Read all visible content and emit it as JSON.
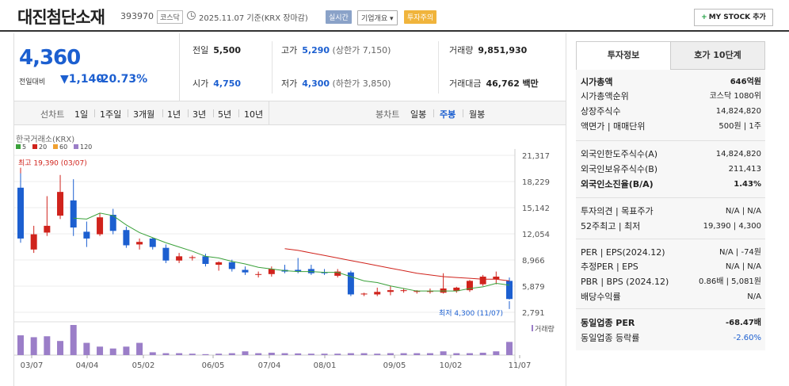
{
  "header": {
    "name": "대진첨단소재",
    "code": "393970",
    "market": "코스닥",
    "date": "2025.11.07 기준(KRX 장마감)",
    "tag_realtime": "실시간",
    "tag_company": "기업개요 ▾",
    "tag_warning": "투자주의",
    "mystock_label": "MY STOCK 추가",
    "mystock_plus": "+"
  },
  "price": {
    "current": "4,360",
    "change_label": "전일대비",
    "change_arrow": "▼",
    "change": "1,140",
    "change_pct": "-20.73%"
  },
  "detail": {
    "prev_label": "전일",
    "prev": "5,500",
    "open_label": "시가",
    "open": "4,750",
    "high_label": "고가",
    "high": "5,290",
    "high_sub": "(상한가 7,150)",
    "low_label": "저가",
    "low": "4,300",
    "low_sub": "(하한가 3,850)",
    "volume_label": "거래량",
    "volume": "9,851,930",
    "value_label": "거래대금",
    "value": "46,762",
    "value_unit": "백만"
  },
  "periods": {
    "label": "선차트",
    "items": [
      "1일",
      "1주일",
      "3개월",
      "1년",
      "3년",
      "5년",
      "10년"
    ],
    "candle_label": "봉차트",
    "candle_items": [
      "일봉",
      "주봉",
      "월봉"
    ],
    "active": "주봉"
  },
  "sidebar": {
    "tab1": "투자정보",
    "tab2": "호가 10단계",
    "rows": [
      {
        "k": "시가총액",
        "v": "646억원",
        "bold": true
      },
      {
        "k": "시가총액순위",
        "v": "코스닥 1080위"
      },
      {
        "k": "상장주식수",
        "v": "14,824,820"
      },
      {
        "k": "액면가 | 매매단위",
        "v": "500원 | 1주"
      },
      {
        "k": "외국인한도주식수(A)",
        "v": "14,824,820"
      },
      {
        "k": "외국인보유주식수(B)",
        "v": "211,413"
      },
      {
        "k": "외국인소진율(B/A)",
        "v": "1.43%",
        "bold": true
      },
      {
        "k": "투자의견 | 목표주가",
        "v": "N/A | N/A"
      },
      {
        "k": "52주최고 | 최저",
        "v": "19,390 | 4,300"
      },
      {
        "k": "PER | EPS(2024.12)",
        "v": "N/A | -74원"
      },
      {
        "k": "추정PER | EPS",
        "v": "N/A | N/A"
      },
      {
        "k": "PBR | BPS (2024.12)",
        "v": "0.86배 | 5,081원"
      },
      {
        "k": "배당수익률",
        "v": "N/A"
      },
      {
        "k": "동일업종 PER",
        "v": "-68.47배",
        "bold": true
      },
      {
        "k": "동일업종 등락률",
        "v": "-2.60%",
        "blue": true
      }
    ]
  },
  "chart_data": {
    "type": "candlestick",
    "source_label": "한국거래소(KRX)",
    "ma_legend": [
      {
        "name": "5",
        "color": "#3aa13a"
      },
      {
        "name": "20",
        "color": "#d0231c"
      },
      {
        "name": "60",
        "color": "#f0a030"
      },
      {
        "name": "120",
        "color": "#9b7ec8"
      }
    ],
    "y_ticks": [
      "21,317",
      "18,229",
      "15,142",
      "12,054",
      "8,966",
      "5,879",
      "2,791"
    ],
    "y_range": [
      2791,
      21317
    ],
    "x_ticks": [
      "03/07",
      "04/04",
      "05/02",
      "06/05",
      "07/04",
      "08/01",
      "09/05",
      "10/02",
      "11/07"
    ],
    "high_annot": "최고 19,390 (03/07)",
    "low_annot": "최저 4,300 (11/07)",
    "volume_label": "거래량",
    "candles": [
      {
        "o": 17500,
        "h": 19390,
        "l": 11000,
        "c": 11500
      },
      {
        "o": 10200,
        "h": 13000,
        "l": 9800,
        "c": 12000
      },
      {
        "o": 12200,
        "h": 16500,
        "l": 11800,
        "c": 13000
      },
      {
        "o": 14200,
        "h": 19000,
        "l": 13800,
        "c": 17000
      },
      {
        "o": 16000,
        "h": 18500,
        "l": 11800,
        "c": 12800
      },
      {
        "o": 12300,
        "h": 13500,
        "l": 10500,
        "c": 11500
      },
      {
        "o": 12000,
        "h": 14500,
        "l": 11800,
        "c": 14000
      },
      {
        "o": 14300,
        "h": 15000,
        "l": 12000,
        "c": 12400
      },
      {
        "o": 12500,
        "h": 12900,
        "l": 10400,
        "c": 10700
      },
      {
        "o": 10800,
        "h": 11500,
        "l": 10200,
        "c": 11100
      },
      {
        "o": 11500,
        "h": 11600,
        "l": 10200,
        "c": 10500
      },
      {
        "o": 10400,
        "h": 10800,
        "l": 8600,
        "c": 8900
      },
      {
        "o": 8900,
        "h": 9800,
        "l": 8600,
        "c": 9400
      },
      {
        "o": 9200,
        "h": 9500,
        "l": 8900,
        "c": 9300
      },
      {
        "o": 9400,
        "h": 9700,
        "l": 8200,
        "c": 8500
      },
      {
        "o": 8400,
        "h": 8800,
        "l": 7700,
        "c": 8700
      },
      {
        "o": 8700,
        "h": 9000,
        "l": 7600,
        "c": 7900
      },
      {
        "o": 7800,
        "h": 8200,
        "l": 7200,
        "c": 7500
      },
      {
        "o": 7300,
        "h": 7600,
        "l": 6900,
        "c": 7300
      },
      {
        "o": 7300,
        "h": 8200,
        "l": 7000,
        "c": 7900
      },
      {
        "o": 7800,
        "h": 8400,
        "l": 7400,
        "c": 7600
      },
      {
        "o": 7800,
        "h": 9200,
        "l": 7400,
        "c": 7600
      },
      {
        "o": 7900,
        "h": 8400,
        "l": 7200,
        "c": 7400
      },
      {
        "o": 7500,
        "h": 7900,
        "l": 7200,
        "c": 7400
      },
      {
        "o": 7100,
        "h": 7900,
        "l": 6900,
        "c": 7600
      },
      {
        "o": 7500,
        "h": 7700,
        "l": 4700,
        "c": 4900
      },
      {
        "o": 4900,
        "h": 5100,
        "l": 4700,
        "c": 5000
      },
      {
        "o": 4900,
        "h": 5700,
        "l": 4700,
        "c": 5200
      },
      {
        "o": 5200,
        "h": 5900,
        "l": 4800,
        "c": 5400
      },
      {
        "o": 5300,
        "h": 5600,
        "l": 5100,
        "c": 5400
      },
      {
        "o": 5200,
        "h": 5400,
        "l": 5000,
        "c": 5300
      },
      {
        "o": 5200,
        "h": 5600,
        "l": 5000,
        "c": 5300
      },
      {
        "o": 5100,
        "h": 7400,
        "l": 5000,
        "c": 5600
      },
      {
        "o": 5300,
        "h": 5800,
        "l": 5100,
        "c": 5700
      },
      {
        "o": 5400,
        "h": 6600,
        "l": 5200,
        "c": 6500
      },
      {
        "o": 6100,
        "h": 7200,
        "l": 5900,
        "c": 7000
      },
      {
        "o": 6700,
        "h": 7600,
        "l": 6100,
        "c": 7000
      },
      {
        "o": 6500,
        "h": 6900,
        "l": 4300,
        "c": 4360
      }
    ],
    "ma5": [
      null,
      null,
      null,
      null,
      13900,
      13800,
      14500,
      14200,
      13100,
      12200,
      11600,
      11000,
      10500,
      10000,
      9400,
      9200,
      8800,
      8500,
      8100,
      7900,
      7700,
      7600,
      7600,
      7500,
      7500,
      7000,
      6500,
      6300,
      5900,
      5600,
      5300,
      5300,
      5300,
      5300,
      5600,
      5800,
      6200,
      6000
    ],
    "ma20": [
      null,
      null,
      null,
      null,
      null,
      null,
      null,
      null,
      null,
      null,
      null,
      null,
      null,
      null,
      null,
      null,
      null,
      null,
      null,
      null,
      10300,
      10100,
      9800,
      9500,
      9200,
      8900,
      8600,
      8300,
      8000,
      7700,
      7400,
      7200,
      7000,
      6900,
      6800,
      6700,
      6700,
      6500
    ],
    "volume": [
      210,
      190,
      200,
      150,
      320,
      130,
      90,
      70,
      90,
      130,
      30,
      20,
      20,
      15,
      10,
      15,
      20,
      40,
      20,
      25,
      20,
      18,
      15,
      15,
      15,
      20,
      20,
      15,
      20,
      20,
      20,
      20,
      40,
      20,
      20,
      25,
      40,
      140
    ]
  }
}
